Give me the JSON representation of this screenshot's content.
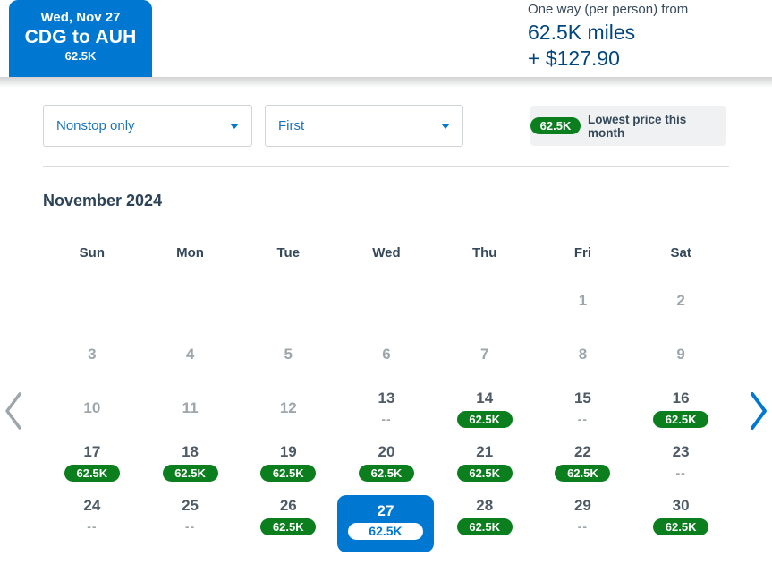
{
  "header": {
    "tab": {
      "date": "Wed, Nov 27",
      "route": "CDG to AUH",
      "miles": "62.5K"
    },
    "price": {
      "label": "One way (per person) from",
      "miles": "62.5K miles",
      "taxes": "+ $127.90"
    }
  },
  "filters": {
    "stops": {
      "value": "Nonstop only"
    },
    "cabin": {
      "value": "First"
    }
  },
  "legend": {
    "badge": "62.5K",
    "label": "Lowest price this month"
  },
  "calendar": {
    "month_title": "November 2024",
    "weekdays": [
      "Sun",
      "Mon",
      "Tue",
      "Wed",
      "Thu",
      "Fri",
      "Sat"
    ],
    "cells": [
      {
        "state": "empty"
      },
      {
        "state": "empty"
      },
      {
        "state": "empty"
      },
      {
        "state": "empty"
      },
      {
        "state": "empty"
      },
      {
        "day": "1",
        "state": "muted"
      },
      {
        "day": "2",
        "state": "muted"
      },
      {
        "day": "3",
        "state": "muted"
      },
      {
        "day": "4",
        "state": "muted"
      },
      {
        "day": "5",
        "state": "muted"
      },
      {
        "day": "6",
        "state": "muted"
      },
      {
        "day": "7",
        "state": "muted"
      },
      {
        "day": "8",
        "state": "muted"
      },
      {
        "day": "9",
        "state": "muted"
      },
      {
        "day": "10",
        "state": "muted"
      },
      {
        "day": "11",
        "state": "muted"
      },
      {
        "day": "12",
        "state": "muted"
      },
      {
        "day": "13",
        "state": "dash",
        "price": "--"
      },
      {
        "day": "14",
        "state": "price",
        "price": "62.5K"
      },
      {
        "day": "15",
        "state": "dash",
        "price": "--"
      },
      {
        "day": "16",
        "state": "price",
        "price": "62.5K"
      },
      {
        "day": "17",
        "state": "price",
        "price": "62.5K"
      },
      {
        "day": "18",
        "state": "price",
        "price": "62.5K"
      },
      {
        "day": "19",
        "state": "price",
        "price": "62.5K"
      },
      {
        "day": "20",
        "state": "price",
        "price": "62.5K"
      },
      {
        "day": "21",
        "state": "price",
        "price": "62.5K"
      },
      {
        "day": "22",
        "state": "price",
        "price": "62.5K"
      },
      {
        "day": "23",
        "state": "dash",
        "price": "--"
      },
      {
        "day": "24",
        "state": "dash",
        "price": "--"
      },
      {
        "day": "25",
        "state": "dash",
        "price": "--"
      },
      {
        "day": "26",
        "state": "price",
        "price": "62.5K"
      },
      {
        "day": "27",
        "state": "selected",
        "price": "62.5K"
      },
      {
        "day": "28",
        "state": "price",
        "price": "62.5K"
      },
      {
        "day": "29",
        "state": "dash",
        "price": "--"
      },
      {
        "day": "30",
        "state": "price",
        "price": "62.5K"
      }
    ]
  },
  "colors": {
    "brand_blue": "#0078D2",
    "dark_blue": "#00467F",
    "text_dark": "#36495A",
    "muted_gray": "#9DA6AB",
    "badge_green": "#0B7E1E",
    "legend_bg": "#F0F1F2"
  }
}
